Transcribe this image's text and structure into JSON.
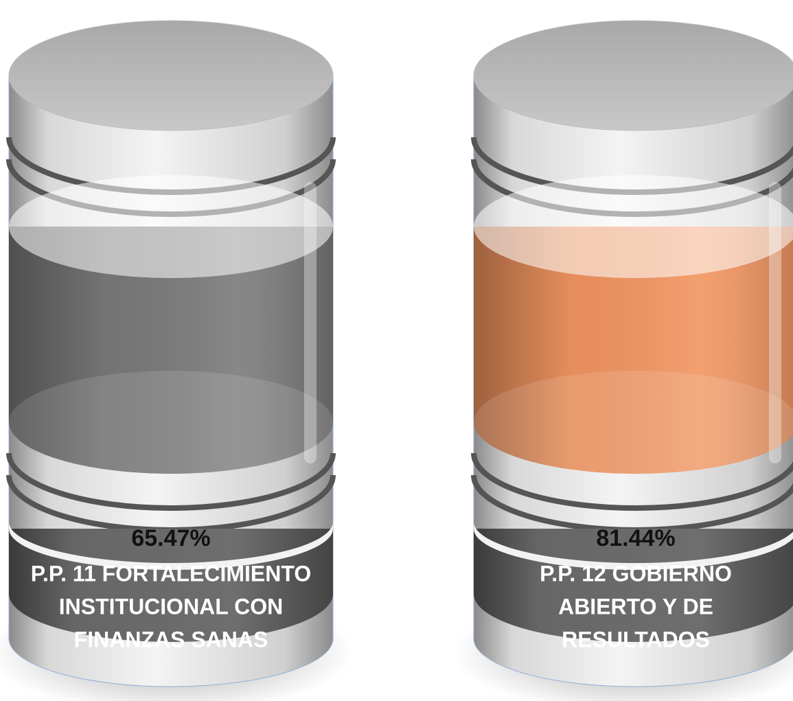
{
  "cylinders": [
    {
      "value": "65.47%",
      "label_lines": [
        "P.P. 11 FORTALECIMIENTO",
        "INSTITUCIONAL CON",
        "FINANZAS SANAS"
      ],
      "color": "#7a7a7a"
    },
    {
      "value": "81.44%",
      "label_lines": [
        "P.P. 12 GOBIERNO",
        "ABIERTO Y DE",
        "RESULTADOS"
      ],
      "color": "#f29560"
    }
  ]
}
